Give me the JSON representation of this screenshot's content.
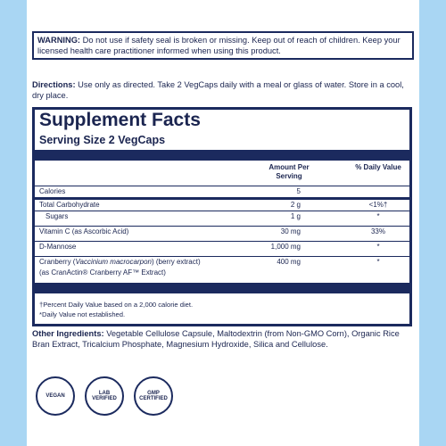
{
  "warning": {
    "label": "WARNING:",
    "text": "Do not use if safety seal is broken or missing. Keep out of reach of children. Keep your licensed health care practitioner informed when using this product."
  },
  "directions": {
    "label": "Directions:",
    "text": "Use only as directed. Take 2 VegCaps daily with a meal or glass of water. Store in a cool, dry place."
  },
  "facts": {
    "title": "Supplement Facts",
    "serving": "Serving Size 2 VegCaps",
    "header": {
      "amount": "Amount Per Serving",
      "dv": "% Daily Value"
    },
    "rows": [
      {
        "name": [
          "Calories"
        ],
        "amount": "5",
        "dv": ""
      },
      {
        "name": [
          "Total Carbohydrate"
        ],
        "amount": "2 g",
        "dv": "<1%†"
      },
      {
        "name": [
          "Sugars"
        ],
        "amount": "1 g",
        "dv": "*"
      },
      {
        "name": [
          "Vitamin C (as Ascorbic Acid)"
        ],
        "amount": "30 mg",
        "dv": "33%"
      },
      {
        "name": [
          "D-Mannose"
        ],
        "amount": "1,000 mg",
        "dv": "*"
      },
      {
        "name": [
          "Cranberry (",
          "Vaccinium macrocarpon",
          ") (berry extract)"
        ],
        "sub": "(as CranActin® Cranberry AF™ Extract)",
        "amount": "400 mg",
        "dv": "*"
      }
    ],
    "footnotes": [
      "†Percent Daily Value based on a 2,000 calorie diet.",
      "*Daily Value not established."
    ]
  },
  "other": {
    "label": "Other Ingredients:",
    "text": "Vegetable Cellulose Capsule, Maltodextrin (from Non-GMO Corn), Organic Rice Bran Extract, Tricalcium Phosphate, Magnesium Hydroxide, Silica and Cellulose."
  },
  "badges": [
    [
      "VEGAN"
    ],
    [
      "LAB",
      "VERIFIED"
    ],
    [
      "GMP",
      "CERTIFIED"
    ]
  ]
}
